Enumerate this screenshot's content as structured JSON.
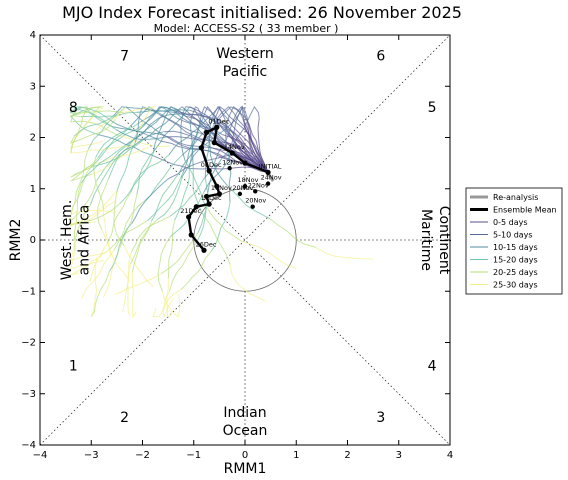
{
  "chart_data": {
    "type": "line",
    "title": "MJO Index Forecast initialised:  26  November 2025",
    "subtitle": "Model: ACCESS-S2 ( 33 member )",
    "xlabel": "RMM1",
    "ylabel": "RMM2",
    "xlim": [
      -4,
      4
    ],
    "ylim": [
      -4,
      4
    ],
    "xticks": [
      "−4",
      "−3",
      "−2",
      "−1",
      "0",
      "1",
      "2",
      "3",
      "4"
    ],
    "yticks": [
      "−4",
      "−3",
      "−2",
      "−1",
      "0",
      "1",
      "2",
      "3",
      "4"
    ],
    "phases": [
      {
        "num": "1",
        "x": -3.35,
        "y": -2.45
      },
      {
        "num": "2",
        "x": -2.35,
        "y": -3.45
      },
      {
        "num": "3",
        "x": 2.65,
        "y": -3.45
      },
      {
        "num": "4",
        "x": 3.65,
        "y": -2.45
      },
      {
        "num": "5",
        "x": 3.65,
        "y": 2.6
      },
      {
        "num": "6",
        "x": 2.65,
        "y": 3.6
      },
      {
        "num": "7",
        "x": -2.35,
        "y": 3.6
      },
      {
        "num": "8",
        "x": -3.35,
        "y": 2.6
      }
    ],
    "regions": {
      "top": [
        "Western",
        "Pacific"
      ],
      "bottom": [
        "Indian",
        "Ocean"
      ],
      "left": [
        "West. Hem.",
        "and Africa"
      ],
      "right": [
        "Maritime",
        "Continent"
      ]
    },
    "legend": {
      "position": "outside right",
      "items": [
        {
          "label": "Re-analysis",
          "color": "#999999",
          "width": 3
        },
        {
          "label": "Ensemble Mean",
          "color": "#000000",
          "width": 3
        },
        {
          "label": "0-5 days",
          "color": "#5a4b8c",
          "width": 1
        },
        {
          "label": "5-10 days",
          "color": "#5a6b9a",
          "width": 1
        },
        {
          "label": "10-15 days",
          "color": "#4f8ea0",
          "width": 1
        },
        {
          "label": "15-20 days",
          "color": "#6cc3a0",
          "width": 1
        },
        {
          "label": "20-25 days",
          "color": "#b6df7a",
          "width": 1
        },
        {
          "label": "25-30 days",
          "color": "#f3f08a",
          "width": 1
        }
      ]
    },
    "reanalysis": [
      {
        "x": 0.55,
        "y": 1.15
      },
      {
        "x": 0.45,
        "y": 1.3
      }
    ],
    "ensemble_mean": [
      {
        "x": 0.45,
        "y": 1.32,
        "label": "INITIAL"
      },
      {
        "x": 0.0,
        "y": 1.5
      },
      {
        "x": -0.25,
        "y": 1.7,
        "label": "14Nov"
      },
      {
        "x": -0.6,
        "y": 1.9
      },
      {
        "x": -0.55,
        "y": 2.2,
        "label": "01Dec"
      },
      {
        "x": -0.75,
        "y": 2.1
      },
      {
        "x": -0.85,
        "y": 1.8
      },
      {
        "x": -0.7,
        "y": 1.35,
        "label": "06Dec"
      },
      {
        "x": -0.55,
        "y": 1.05
      },
      {
        "x": -0.5,
        "y": 0.9,
        "label": "16Nov"
      },
      {
        "x": -0.75,
        "y": 0.85
      },
      {
        "x": -0.7,
        "y": 0.7,
        "label": "11Dec"
      },
      {
        "x": -0.95,
        "y": 0.65
      },
      {
        "x": -1.1,
        "y": 0.45,
        "label": "21Dec"
      },
      {
        "x": -1.05,
        "y": 0.1
      },
      {
        "x": -0.8,
        "y": -0.2,
        "label": "26Dec"
      }
    ],
    "mean_other_points": [
      {
        "x": -0.3,
        "y": 1.4,
        "label": "12Nov"
      },
      {
        "x": 0.0,
        "y": 1.05,
        "label": "18Nov"
      },
      {
        "x": -0.1,
        "y": 0.9,
        "label": "20Nov"
      },
      {
        "x": 0.15,
        "y": 0.65,
        "label": "20Nov"
      },
      {
        "x": 0.45,
        "y": 1.1,
        "label": "24Nov"
      },
      {
        "x": 0.2,
        "y": 0.95,
        "label": "22Nov"
      }
    ],
    "amplitude_one_circle": {
      "x": 0,
      "y": 0,
      "r": 1
    }
  }
}
